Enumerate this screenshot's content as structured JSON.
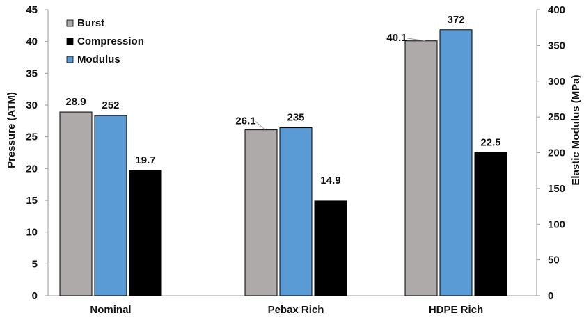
{
  "chart_data": {
    "type": "bar",
    "categories": [
      "Nominal",
      "Pebax Rich",
      "HDPE Rich"
    ],
    "series": [
      {
        "name": "Burst",
        "axis": "left",
        "color": "#aeaaaa",
        "values": [
          28.9,
          26.1,
          40.1
        ]
      },
      {
        "name": "Modulus",
        "axis": "right",
        "color": "#5b9bd5",
        "values": [
          252,
          235,
          372
        ]
      },
      {
        "name": "Compression",
        "axis": "left",
        "color": "#000000",
        "values": [
          19.7,
          14.9,
          22.5
        ]
      }
    ],
    "legend": {
      "position": "top-left",
      "entries": [
        "Burst",
        "Compression",
        "Modulus"
      ]
    },
    "ylabel": "Pressure (ATM)",
    "ylabel_right": "Elastic Modulus (MPa)",
    "ylim": [
      0,
      45
    ],
    "ylim_right": [
      0,
      400
    ],
    "yticks": [
      "0",
      "5",
      "10",
      "15",
      "20",
      "25",
      "30",
      "35",
      "40",
      "45"
    ],
    "yticks_right": [
      "0",
      "50",
      "100",
      "150",
      "200",
      "250",
      "300",
      "350",
      "400"
    ],
    "grid": false,
    "data_labels": true
  }
}
